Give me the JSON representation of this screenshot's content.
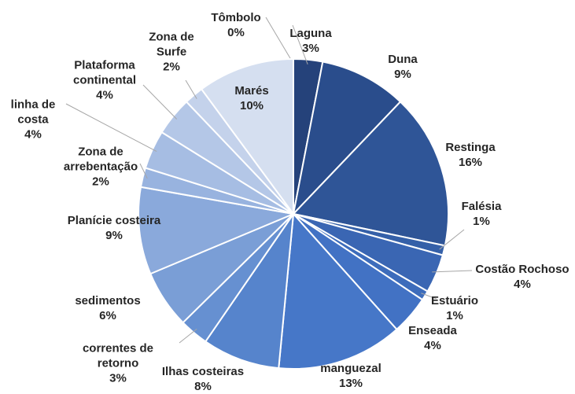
{
  "chart_data": {
    "type": "pie",
    "categories": [
      "Tômbolo",
      "Laguna",
      "Duna",
      "Restinga",
      "Falésia",
      "Costão Rochoso",
      "Estuário",
      "Enseada",
      "manguezal",
      "Ilhas costeiras",
      "correntes de retorno",
      "sedimentos",
      "Planície costeira",
      "Zona de arrebentação",
      "linha de costa",
      "Plataforma continental",
      "Zona de Surfe",
      "Marés"
    ],
    "values": [
      0,
      3,
      9,
      16,
      1,
      4,
      1,
      4,
      13,
      8,
      3,
      6,
      9,
      2,
      4,
      4,
      2,
      10
    ],
    "value_labels": [
      "0%",
      "3%",
      "9%",
      "16%",
      "1%",
      "4%",
      "1%",
      "4%",
      "13%",
      "8%",
      "3%",
      "6%",
      "9%",
      "2%",
      "4%",
      "4%",
      "2%",
      "10%"
    ],
    "colors": [
      "#1f3864",
      "#25427a",
      "#2a4d8c",
      "#2f5597",
      "#3560a8",
      "#3a66b3",
      "#3d6cbb",
      "#4272c4",
      "#4677c8",
      "#5684cc",
      "#6690d1",
      "#7a9ed6",
      "#8aa9db",
      "#98b3df",
      "#a6bde3",
      "#b4c7e7",
      "#c4d2eb",
      "#d5dff0"
    ]
  }
}
